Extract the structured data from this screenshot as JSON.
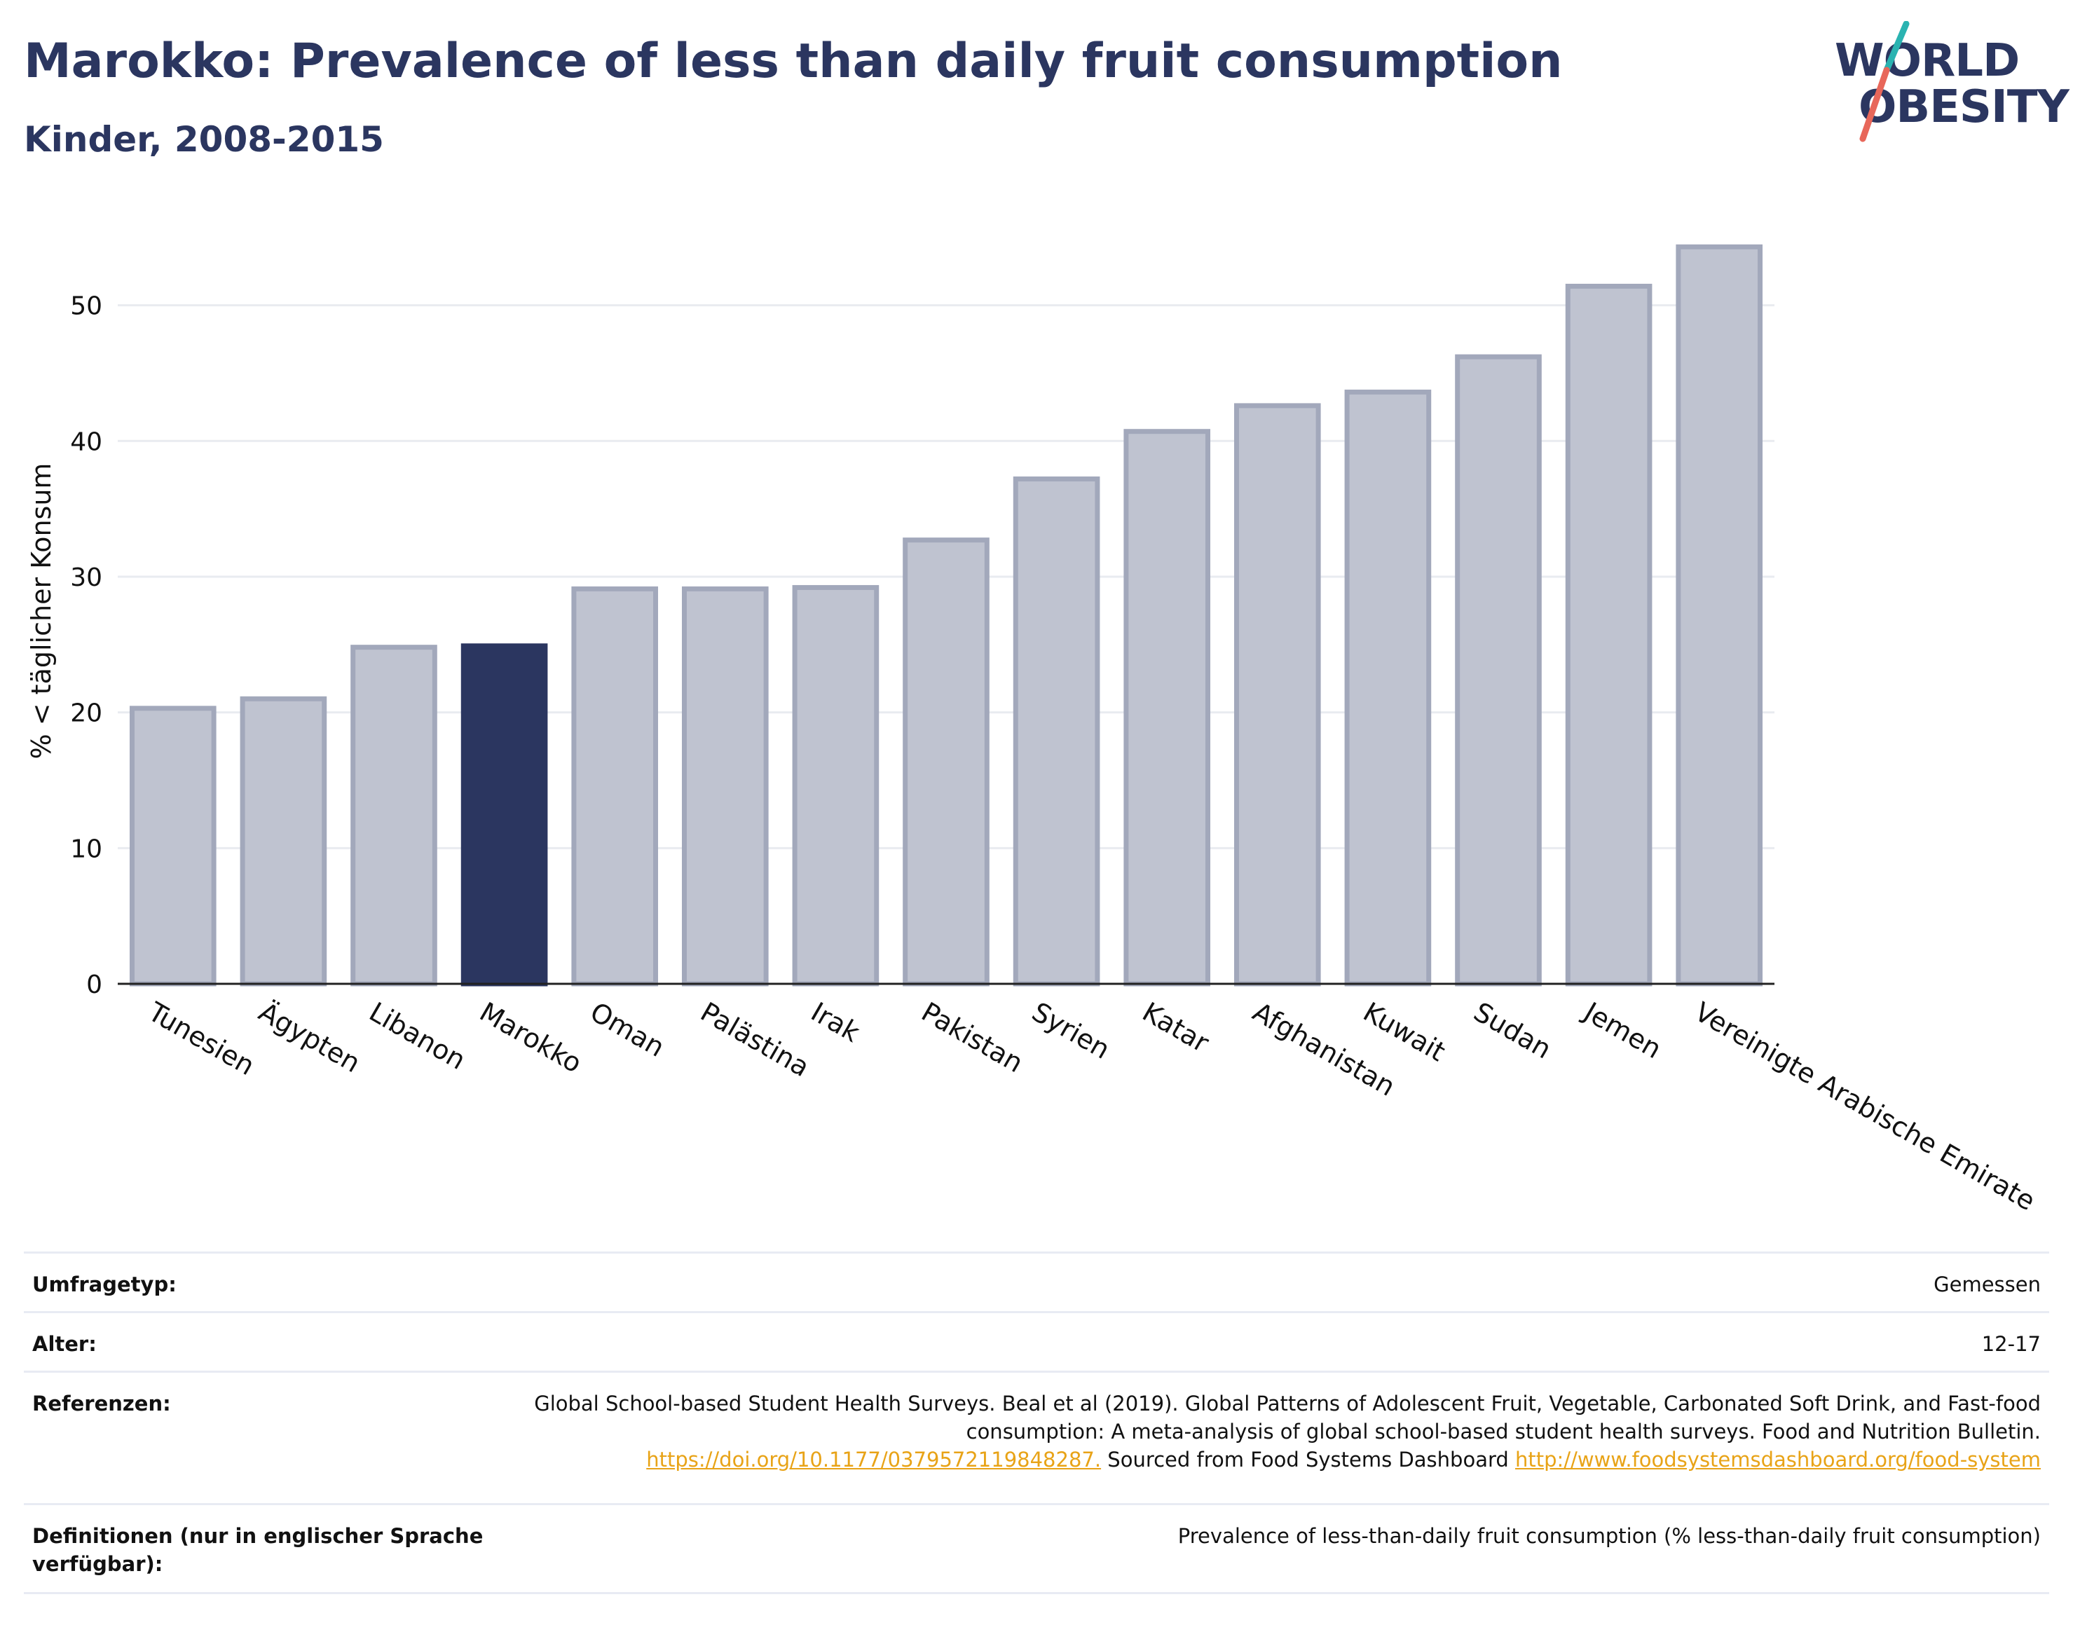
{
  "header": {
    "title": "Marokko: Prevalence of less than daily fruit consumption",
    "subtitle": "Kinder, 2008-2015"
  },
  "logo": {
    "line1": "WORLD",
    "line2": "OBESITY",
    "colors": {
      "text": "#2b3660",
      "slash_top": "#2ab3b1",
      "slash_bottom": "#e8675a"
    }
  },
  "chart_data": {
    "type": "bar",
    "categories": [
      "Tunesien",
      "Ägypten",
      "Libanon",
      "Marokko",
      "Oman",
      "Palästina",
      "Irak",
      "Pakistan",
      "Syrien",
      "Katar",
      "Afghanistan",
      "Kuwait",
      "Sudan",
      "Jemen",
      "Vereinigte Arabische Emirate"
    ],
    "values": [
      20.3,
      21.0,
      24.8,
      24.9,
      29.1,
      29.1,
      29.2,
      32.7,
      37.2,
      40.7,
      42.6,
      43.6,
      46.2,
      51.4,
      54.3
    ],
    "highlight": "Marokko",
    "ylabel": "% < täglicher Konsum",
    "ylim": [
      0,
      57
    ],
    "yticks": [
      0,
      10,
      20,
      30,
      40,
      50
    ],
    "grid": true,
    "colors": {
      "highlight": "#2b3660",
      "bar_fill": "#bfc3d0",
      "bar_stroke": "#a2a8bb"
    }
  },
  "meta": {
    "rows": [
      {
        "key": "Umfragetyp:",
        "value": "Gemessen"
      },
      {
        "key": "Alter:",
        "value": "12-17"
      },
      {
        "key": "Referenzen:",
        "value": "Global School-based Student Health Surveys. Beal et al (2019). Global Patterns of Adolescent Fruit, Vegetable, Carbonated Soft Drink, and Fast-food consumption: A meta-analysis of global school-based student health surveys. Food and Nutrition Bulletin.",
        "link1": "https://doi.org/10.1177/0379572119848287.",
        "middle": " Sourced from Food Systems Dashboard ",
        "link2": "http://www.foodsystemsdashboard.org/food-system"
      },
      {
        "key": "Definitionen (nur in englischer Sprache verfügbar):",
        "value": "Prevalence of less-than-daily fruit consumption (% less-than-daily fruit consumption)"
      }
    ]
  }
}
